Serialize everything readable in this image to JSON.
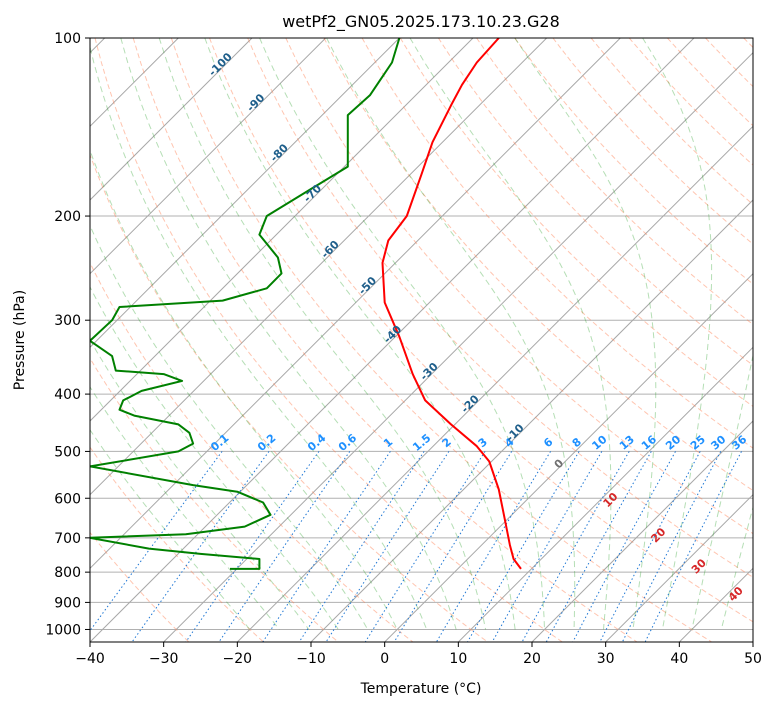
{
  "chart_data": {
    "type": "line",
    "title": "wetPf2_GN05.2025.173.10.23.G28",
    "xlabel": "Temperature (°C)",
    "ylabel": "Pressure (hPa)",
    "xlim": [
      -40,
      50
    ],
    "ylim": [
      1050,
      100
    ],
    "y_scale": "log",
    "grid": true,
    "x_ticks": [
      "−40",
      "−30",
      "−20",
      "−10",
      "0",
      "10",
      "20",
      "30",
      "40",
      "50"
    ],
    "y_ticks": [
      {
        "value": 100,
        "label": "100"
      },
      {
        "value": 200,
        "label": "200"
      },
      {
        "value": 300,
        "label": "300"
      },
      {
        "value": 400,
        "label": "400"
      },
      {
        "value": 500,
        "label": "500"
      },
      {
        "value": 600,
        "label": "600"
      },
      {
        "value": 700,
        "label": "700"
      },
      {
        "value": 800,
        "label": "800"
      },
      {
        "value": 900,
        "label": "900"
      },
      {
        "value": 1000,
        "label": "1000"
      }
    ],
    "series": [
      {
        "role": "temperature",
        "color": "#ff0000",
        "points": [
          [
            18.5,
            790
          ],
          [
            17.5,
            760
          ],
          [
            17,
            720
          ],
          [
            16.3,
            650
          ],
          [
            15.5,
            580
          ],
          [
            14.2,
            520
          ],
          [
            12.5,
            490
          ],
          [
            9,
            450
          ],
          [
            5.5,
            410
          ],
          [
            3.8,
            370
          ],
          [
            2,
            320
          ],
          [
            0,
            280
          ],
          [
            -0.3,
            240
          ],
          [
            0.5,
            220
          ],
          [
            3,
            200
          ],
          [
            5,
            170
          ],
          [
            6.5,
            150
          ],
          [
            9,
            130
          ],
          [
            10.5,
            120
          ],
          [
            12.5,
            110
          ],
          [
            15.5,
            100
          ]
        ]
      },
      {
        "role": "dewpoint",
        "color": "#008000",
        "points": [
          [
            -21,
            790
          ],
          [
            -17,
            790
          ],
          [
            -17,
            760
          ],
          [
            -25,
            745
          ],
          [
            -32,
            730
          ],
          [
            -40,
            700
          ],
          [
            -27,
            690
          ],
          [
            -19,
            670
          ],
          [
            -15.5,
            640
          ],
          [
            -16.5,
            610
          ],
          [
            -20,
            585
          ],
          [
            -26,
            570
          ],
          [
            -40,
            530
          ],
          [
            -28,
            500
          ],
          [
            -26,
            485
          ],
          [
            -26.5,
            465
          ],
          [
            -28,
            450
          ],
          [
            -34,
            435
          ],
          [
            -36,
            425
          ],
          [
            -35.5,
            410
          ],
          [
            -33,
            395
          ],
          [
            -27.5,
            380
          ],
          [
            -30,
            370
          ],
          [
            -36.5,
            365
          ],
          [
            -37,
            345
          ],
          [
            -40,
            325
          ],
          [
            -37,
            300
          ],
          [
            -36,
            285
          ],
          [
            -22,
            278
          ],
          [
            -16,
            265
          ],
          [
            -14,
            250
          ],
          [
            -14.5,
            235
          ],
          [
            -17,
            215
          ],
          [
            -16,
            200
          ],
          [
            -10,
            180
          ],
          [
            -5,
            165
          ],
          [
            -5,
            150
          ],
          [
            -5,
            135
          ],
          [
            -2,
            125
          ],
          [
            1,
            110
          ],
          [
            2,
            100
          ]
        ]
      }
    ],
    "mixing_ratio_labels": [
      "0.1",
      "0.2",
      "0.4",
      "0.6",
      "1",
      "1.5",
      "2",
      "3",
      "4",
      "6",
      "8",
      "10",
      "13",
      "16",
      "20",
      "25",
      "30",
      "36"
    ],
    "dry_adiabat_labels": [
      "-100",
      "-90",
      "-80",
      "-70",
      "-60",
      "-50",
      "-40",
      "-30",
      "-20",
      "-10"
    ],
    "moist_adiabat_labels": [
      "0",
      "10",
      "20",
      "30",
      "40"
    ],
    "colors": {
      "temperature": "#ff0000",
      "dewpoint": "#008000",
      "dry_adiabat": "#ff7f50",
      "moist_adiabat": "#2ca02c",
      "mixing_ratio": "#1f77d4",
      "isotherm": "#808080",
      "label_dry": "#1f5f8b",
      "label_moist": "#d62728",
      "label_mixing": "#1e90ff"
    }
  }
}
